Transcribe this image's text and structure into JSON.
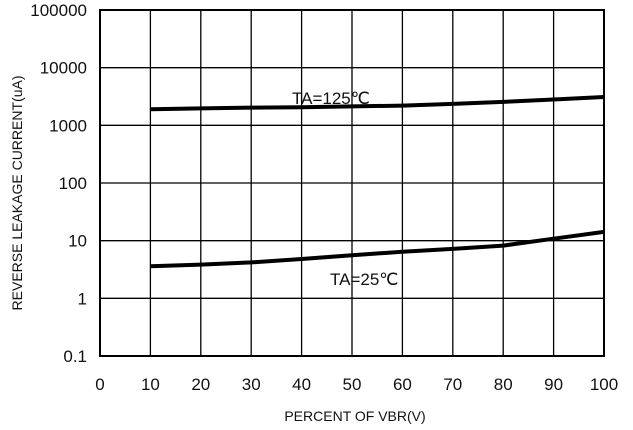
{
  "chart_data": {
    "type": "line",
    "xlabel": "PERCENT OF VBR(V)",
    "ylabel": "REVERSE LEAKAGE CURRENT(uA)",
    "x_scale": "linear",
    "y_scale": "log",
    "xlim": [
      0,
      100
    ],
    "ylim": [
      0.1,
      100000
    ],
    "grid": true,
    "x_ticks": [
      "0",
      "10",
      "20",
      "30",
      "40",
      "50",
      "60",
      "70",
      "80",
      "90",
      "100"
    ],
    "y_ticks": [
      "0.1",
      "1",
      "10",
      "100",
      "1000",
      "10000",
      "100000"
    ],
    "series": [
      {
        "name": "TA=125℃",
        "x": [
          10,
          20,
          30,
          40,
          50,
          60,
          70,
          80,
          90,
          100
        ],
        "y": [
          1900,
          1970,
          2030,
          2060,
          2130,
          2200,
          2350,
          2550,
          2800,
          3100
        ]
      },
      {
        "name": "TA=25℃",
        "x": [
          10,
          20,
          30,
          40,
          50,
          60,
          70,
          80,
          90,
          100
        ],
        "y": [
          3.6,
          3.85,
          4.2,
          4.8,
          5.6,
          6.4,
          7.2,
          8.2,
          10.8,
          14.2
        ]
      }
    ],
    "annotations": [
      "TA=125℃",
      "TA=25℃"
    ]
  }
}
